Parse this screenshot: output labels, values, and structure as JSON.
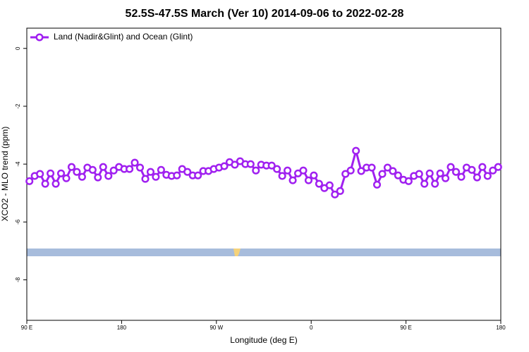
{
  "chart_data": {
    "type": "line",
    "title": "52.5S-47.5S March (Ver 10)   2014-09-06 to 2022-02-28",
    "xlabel": "Longitude (deg E)",
    "ylabel": "XCO2 - MLO trend (ppm)",
    "xlim": [
      90,
      540
    ],
    "ylim": [
      -9.4,
      0.7
    ],
    "xticks": [
      {
        "value": 90,
        "label": "90 E"
      },
      180,
      {
        "value": 270,
        "label": "90 W"
      },
      {
        "value": 360,
        "label": "0"
      },
      {
        "value": 450,
        "label": "90 E"
      },
      {
        "value": 540,
        "label": "180"
      }
    ],
    "yticks": [
      0,
      -2,
      -4,
      -6,
      -8
    ],
    "legend": "top-left",
    "x": [
      92.5,
      97.5,
      102.5,
      107.5,
      112.5,
      117.5,
      122.5,
      127.5,
      132.5,
      137.5,
      142.5,
      147.5,
      152.5,
      157.5,
      162.5,
      167.5,
      172.5,
      177.5,
      182.5,
      187.5,
      192.5,
      197.5,
      202.5,
      207.5,
      212.5,
      217.5,
      222.5,
      227.5,
      232.5,
      237.5,
      242.5,
      247.5,
      252.5,
      257.5,
      262.5,
      267.5,
      272.5,
      277.5,
      282.5,
      287.5,
      292.5,
      297.5,
      302.5,
      307.5,
      312.5,
      317.5,
      322.5,
      327.5,
      332.5,
      337.5,
      342.5,
      347.5,
      352.5,
      357.5,
      362.5,
      367.5,
      372.5,
      377.5,
      382.5,
      387.5,
      392.5,
      397.5,
      402.5,
      407.5,
      412.5,
      417.5,
      422.5,
      427.5,
      432.5,
      437.5,
      442.5,
      447.5,
      452.5,
      457.5,
      462.5,
      467.5,
      472.5,
      477.5,
      482.5,
      487.5,
      492.5,
      497.5,
      502.5,
      507.5,
      512.5,
      517.5,
      522.5,
      527.5,
      532.5,
      537.5
    ],
    "series": [
      {
        "name": "Land (Nadir&Glint) and Ocean (Glint)",
        "color": "#a020f0",
        "values": [
          -4.59,
          -4.41,
          -4.34,
          -4.68,
          -4.32,
          -4.68,
          -4.32,
          -4.49,
          -4.1,
          -4.27,
          -4.44,
          -4.12,
          -4.2,
          -4.46,
          -4.1,
          -4.41,
          -4.22,
          -4.1,
          -4.17,
          -4.17,
          -3.95,
          -4.12,
          -4.51,
          -4.27,
          -4.44,
          -4.2,
          -4.37,
          -4.41,
          -4.39,
          -4.17,
          -4.27,
          -4.39,
          -4.39,
          -4.24,
          -4.24,
          -4.17,
          -4.12,
          -4.07,
          -3.93,
          -4.02,
          -3.9,
          -4.0,
          -4.0,
          -4.22,
          -4.02,
          -4.05,
          -4.05,
          -4.17,
          -4.41,
          -4.22,
          -4.56,
          -4.32,
          -4.22,
          -4.56,
          -4.39,
          -4.68,
          -4.83,
          -4.73,
          -5.05,
          -4.93,
          -4.34,
          -4.22,
          -3.54,
          -4.24,
          -4.12,
          -4.12,
          -4.71,
          -4.34,
          -4.12,
          -4.24,
          -4.39,
          -4.54,
          -4.59,
          -4.41,
          -4.34,
          -4.68,
          -4.32,
          -4.68,
          -4.32,
          -4.49,
          -4.1,
          -4.27,
          -4.44,
          -4.12,
          -4.2,
          -4.46,
          -4.1,
          -4.41,
          -4.22,
          -4.1
        ]
      }
    ]
  }
}
